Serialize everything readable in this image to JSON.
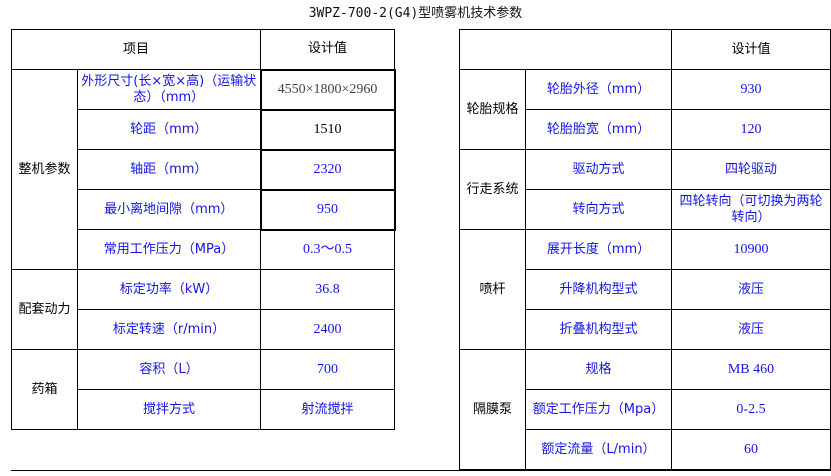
{
  "title": "3WPZ-700-2(G4)型喷雾机技术参数",
  "left": {
    "header": {
      "item": "项目",
      "value": "设计值"
    },
    "groups": [
      {
        "name": "整机参数",
        "rows": [
          {
            "label": "外形尺寸(长×宽×高)（运输状态）（mm）",
            "value": "4550×1800×2960"
          },
          {
            "label": "轮距（mm）",
            "value": "1510"
          },
          {
            "label": "轴距（mm）",
            "value": "2320"
          },
          {
            "label": "最小离地间隙（mm）",
            "value": "950"
          },
          {
            "label": "常用工作压力（MPa）",
            "value": "0.3～0.5"
          }
        ]
      },
      {
        "name": "配套动力",
        "rows": [
          {
            "label": "标定功率（kW）",
            "value": "36.8"
          },
          {
            "label": "标定转速（r/min）",
            "value": "2400"
          }
        ]
      },
      {
        "name": "药箱",
        "rows": [
          {
            "label": "容积（L）",
            "value": "700"
          },
          {
            "label": "搅拌方式",
            "value": "射流搅拌"
          }
        ]
      }
    ]
  },
  "right": {
    "header": {
      "item": "",
      "value": "设计值"
    },
    "groups": [
      {
        "name": "轮胎规格",
        "rows": [
          {
            "label": "轮胎外径（mm）",
            "value": "930"
          },
          {
            "label": "轮胎胎宽（mm）",
            "value": "120"
          }
        ]
      },
      {
        "name": "行走系统",
        "rows": [
          {
            "label": "驱动方式",
            "value": "四轮驱动"
          },
          {
            "label": "转向方式",
            "value": "四轮转向（可切换为两轮转向）"
          }
        ]
      },
      {
        "name": "喷杆",
        "rows": [
          {
            "label": "展开长度（mm）",
            "value": "10900"
          },
          {
            "label": "升降机构型式",
            "value": "液压"
          },
          {
            "label": "折叠机构型式",
            "value": "液压"
          }
        ]
      },
      {
        "name": "隔膜泵",
        "rows": [
          {
            "label": "规格",
            "value": "MB 460"
          },
          {
            "label": "额定工作压力（Mpa）",
            "value": "0-2.5"
          },
          {
            "label": "额定流量（L/min）",
            "value": "60"
          }
        ]
      }
    ]
  }
}
